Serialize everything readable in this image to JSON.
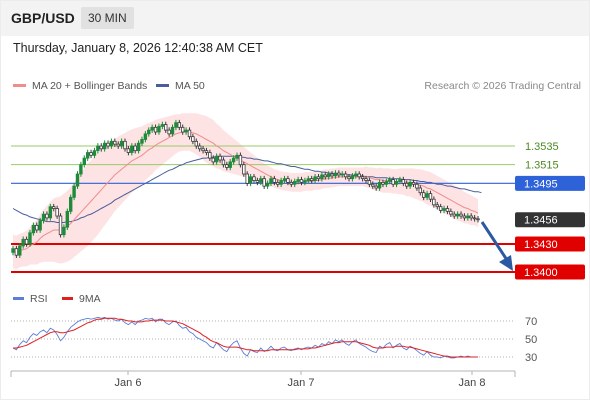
{
  "header": {
    "pair": "GBP/USD",
    "timeframe": "30 MIN"
  },
  "datetime": "Thursday, January 8, 2026 12:40:38 AM CET",
  "legend": {
    "ma20": "MA 20 + Bollinger Bands",
    "ma50": "MA 50",
    "credit": "Research © 2026 Trading Central"
  },
  "rsi_legend": {
    "rsi": "RSI",
    "ma9": "9MA"
  },
  "colors": {
    "candle_up": "#1e8a3a",
    "candle_down": "#3a3a3a",
    "bollinger_fill": "#fde3e3",
    "ma20": "#f08c8c",
    "ma50": "#4a5d9c",
    "resistance": "#9acb6a",
    "pivot": "#2d62d8",
    "support": "#e00000",
    "current": "#333333",
    "arrow": "#2b5aa3",
    "rsi": "#5b7fd8",
    "rsi_ma": "#e02020"
  },
  "chart_data": {
    "type": "candlestick",
    "x_labels": [
      "Jan 6",
      "Jan 7",
      "Jan 8"
    ],
    "price_levels": [
      {
        "name": "resistance-2",
        "value": 1.3535,
        "label": "1.3535"
      },
      {
        "name": "resistance-1",
        "value": 1.3515,
        "label": "1.3515"
      },
      {
        "name": "pivot",
        "value": 1.3495,
        "label": "1.3495"
      },
      {
        "name": "current",
        "value": 1.3456,
        "label": "1.3456"
      },
      {
        "name": "support-1",
        "value": 1.343,
        "label": "1.3430"
      },
      {
        "name": "support-2",
        "value": 1.34,
        "label": "1.3400"
      }
    ],
    "close": [
      1.3425,
      1.3418,
      1.3428,
      1.3435,
      1.343,
      1.3442,
      1.345,
      1.3445,
      1.3455,
      1.3462,
      1.3458,
      1.347,
      1.3468,
      1.346,
      1.344,
      1.3448,
      1.3465,
      1.348,
      1.3492,
      1.3505,
      1.3515,
      1.3522,
      1.3528,
      1.3525,
      1.353,
      1.3535,
      1.3532,
      1.3538,
      1.3535,
      1.354,
      1.3537,
      1.3535,
      1.354,
      1.3532,
      1.3528,
      1.3535,
      1.353,
      1.3538,
      1.3542,
      1.3548,
      1.3552,
      1.3555,
      1.355,
      1.3556,
      1.3558,
      1.3552,
      1.3548,
      1.3555,
      1.356,
      1.3555,
      1.355,
      1.3552,
      1.3545,
      1.354,
      1.3535,
      1.3532,
      1.353,
      1.3528,
      1.3522,
      1.3518,
      1.3524,
      1.352,
      1.3515,
      1.3512,
      1.3518,
      1.3522,
      1.3525,
      1.3515,
      1.3505,
      1.3495,
      1.3502,
      1.3498,
      1.3496,
      1.35,
      1.3492,
      1.3495,
      1.35,
      1.3496,
      1.3494,
      1.3498,
      1.35,
      1.3496,
      1.3494,
      1.3497,
      1.3499,
      1.3496,
      1.3498,
      1.35,
      1.3498,
      1.3502,
      1.35,
      1.3504,
      1.3502,
      1.3505,
      1.3503,
      1.3506,
      1.3504,
      1.3505,
      1.3502,
      1.35,
      1.3503,
      1.3505,
      1.3502,
      1.35,
      1.3498,
      1.3494,
      1.3492,
      1.349,
      1.3496,
      1.3494,
      1.3497,
      1.3499,
      1.3494,
      1.3497,
      1.3499,
      1.3495,
      1.3492,
      1.3496,
      1.3494,
      1.349,
      1.3485,
      1.348,
      1.3484,
      1.3478,
      1.3472,
      1.347,
      1.3466,
      1.3468,
      1.3465,
      1.3462,
      1.346,
      1.3462,
      1.346,
      1.3458,
      1.346,
      1.3458,
      1.3457,
      1.3456
    ],
    "ma20": [
      1.3422,
      1.3421,
      1.3423,
      1.3424,
      1.3425,
      1.3428,
      1.343,
      1.3432,
      1.3436,
      1.3439,
      1.3441,
      1.3443,
      1.3445,
      1.3445,
      1.3445,
      1.3447,
      1.3449,
      1.3452,
      1.3456,
      1.346,
      1.3464,
      1.3468,
      1.3472,
      1.3476,
      1.348,
      1.3484,
      1.3488,
      1.3492,
      1.3496,
      1.35,
      1.3504,
      1.3507,
      1.351,
      1.3513,
      1.3516,
      1.3519,
      1.3521,
      1.3523,
      1.3525,
      1.3528,
      1.3531,
      1.3533,
      1.3536,
      1.3538,
      1.354,
      1.3542,
      1.3544,
      1.3546,
      1.3548,
      1.3549,
      1.355,
      1.355,
      1.355,
      1.3549,
      1.3548,
      1.3546,
      1.3544,
      1.3542,
      1.354,
      1.3538,
      1.3535,
      1.3533,
      1.353,
      1.3528,
      1.3526,
      1.3524,
      1.3522,
      1.352,
      1.3518,
      1.3516,
      1.3514,
      1.3512,
      1.351,
      1.3508,
      1.3506,
      1.3504,
      1.3502,
      1.35,
      1.3499,
      1.3498,
      1.3497,
      1.3497,
      1.3496,
      1.3496,
      1.3496,
      1.3496,
      1.3497,
      1.3497,
      1.3497,
      1.3498,
      1.3498,
      1.3499,
      1.35,
      1.35,
      1.3501,
      1.3501,
      1.3502,
      1.3502,
      1.3502,
      1.3502,
      1.3502,
      1.3502,
      1.3502,
      1.3502,
      1.3502,
      1.3501,
      1.35,
      1.3499,
      1.3499,
      1.3498,
      1.3498,
      1.3498,
      1.3497,
      1.3497,
      1.3497,
      1.3497,
      1.3496,
      1.3496,
      1.3495,
      1.3494,
      1.3493,
      1.3492,
      1.349,
      1.3489,
      1.3487,
      1.3485,
      1.3483,
      1.3481,
      1.3479,
      1.3477,
      1.3475,
      1.3473,
      1.3471,
      1.3469,
      1.3468,
      1.3466,
      1.3465,
      1.3463
    ],
    "ma50": [
      1.3468,
      1.3466,
      1.3464,
      1.3462,
      1.3461,
      1.3459,
      1.3458,
      1.3457,
      1.3456,
      1.3455,
      1.3454,
      1.3454,
      1.3454,
      1.3453,
      1.3453,
      1.3453,
      1.3454,
      1.3454,
      1.3455,
      1.3456,
      1.3458,
      1.3459,
      1.3461,
      1.3462,
      1.3464,
      1.3466,
      1.3468,
      1.347,
      1.3472,
      1.3474,
      1.3477,
      1.3479,
      1.3481,
      1.3483,
      1.3485,
      1.3487,
      1.3489,
      1.3491,
      1.3493,
      1.3495,
      1.3497,
      1.3499,
      1.3501,
      1.3503,
      1.3505,
      1.3507,
      1.3509,
      1.351,
      1.3512,
      1.3514,
      1.3515,
      1.3517,
      1.3518,
      1.3519,
      1.352,
      1.3521,
      1.3522,
      1.3522,
      1.3523,
      1.3523,
      1.3524,
      1.3524,
      1.3524,
      1.3524,
      1.3524,
      1.3524,
      1.3524,
      1.3523,
      1.3523,
      1.3522,
      1.3522,
      1.3521,
      1.3521,
      1.352,
      1.3519,
      1.3519,
      1.3518,
      1.3517,
      1.3516,
      1.3516,
      1.3515,
      1.3514,
      1.3513,
      1.3513,
      1.3512,
      1.3511,
      1.351,
      1.351,
      1.3509,
      1.3508,
      1.3508,
      1.3507,
      1.3507,
      1.3506,
      1.3506,
      1.3505,
      1.3505,
      1.3505,
      1.3504,
      1.3504,
      1.3504,
      1.3503,
      1.3503,
      1.3503,
      1.3502,
      1.3502,
      1.3502,
      1.3501,
      1.3501,
      1.3501,
      1.3501,
      1.35,
      1.35,
      1.35,
      1.35,
      1.3499,
      1.3499,
      1.3499,
      1.3498,
      1.3498,
      1.3497,
      1.3497,
      1.3496,
      1.3496,
      1.3495,
      1.3494,
      1.3494,
      1.3493,
      1.3492,
      1.3492,
      1.3491,
      1.349,
      1.3489,
      1.3489,
      1.3488,
      1.3487,
      1.3486,
      1.3486,
      1.3485
    ],
    "bollinger_width": [
      0.0018,
      0.0018,
      0.0018,
      0.0018,
      0.0019,
      0.002,
      0.0022,
      0.0024,
      0.0026,
      0.0028,
      0.003,
      0.0032,
      0.0034,
      0.0035,
      0.0036,
      0.0037,
      0.0038,
      0.0039,
      0.004,
      0.0041,
      0.0042,
      0.0043,
      0.0044,
      0.0044,
      0.0044,
      0.0044,
      0.0043,
      0.0042,
      0.0041,
      0.004,
      0.0039,
      0.0038,
      0.0037,
      0.0036,
      0.0035,
      0.0034,
      0.0033,
      0.0032,
      0.0031,
      0.003,
      0.0029,
      0.0028,
      0.0027,
      0.0026,
      0.0025,
      0.0024,
      0.0023,
      0.0022,
      0.0021,
      0.002,
      0.002,
      0.002,
      0.002,
      0.0021,
      0.0022,
      0.0023,
      0.0024,
      0.0025,
      0.0025,
      0.0025,
      0.0024,
      0.0023,
      0.0022,
      0.0021,
      0.002,
      0.0019,
      0.0018,
      0.0017,
      0.0016,
      0.0015,
      0.0014,
      0.0013,
      0.0012,
      0.0011,
      0.001,
      0.001,
      0.001,
      0.001,
      0.001,
      0.001,
      0.001,
      0.001,
      0.001,
      0.001,
      0.001,
      0.001,
      0.001,
      0.001,
      0.001,
      0.001,
      0.001,
      0.001,
      0.001,
      0.001,
      0.001,
      0.001,
      0.001,
      0.001,
      0.001,
      0.001,
      0.001,
      0.001,
      0.001,
      0.001,
      0.0011,
      0.0011,
      0.0012,
      0.0012,
      0.0013,
      0.0013,
      0.0013,
      0.0013,
      0.0013,
      0.0013,
      0.0014,
      0.0014,
      0.0015,
      0.0015,
      0.0016,
      0.0016,
      0.0017,
      0.0017,
      0.0018,
      0.0018,
      0.0018,
      0.0018,
      0.0018,
      0.0018,
      0.0018,
      0.0018,
      0.0018,
      0.0018,
      0.0017,
      0.0017,
      0.0016,
      0.0016,
      0.0015,
      0.0015
    ],
    "rsi": {
      "levels": [
        70,
        50,
        30
      ],
      "ylim": [
        20,
        80
      ],
      "rsi": [
        40,
        38,
        44,
        48,
        46,
        52,
        56,
        54,
        58,
        60,
        57,
        62,
        60,
        55,
        48,
        52,
        58,
        63,
        66,
        69,
        71,
        72,
        73,
        72,
        73,
        74,
        73,
        74,
        72,
        73,
        71,
        70,
        72,
        68,
        66,
        69,
        66,
        70,
        71,
        73,
        72,
        73,
        69,
        72,
        72,
        68,
        66,
        69,
        70,
        65,
        62,
        63,
        58,
        56,
        52,
        50,
        48,
        46,
        42,
        40,
        46,
        42,
        38,
        36,
        42,
        46,
        48,
        40,
        34,
        31,
        38,
        36,
        35,
        40,
        36,
        38,
        42,
        38,
        37,
        40,
        41,
        38,
        37,
        39,
        40,
        38,
        40,
        41,
        40,
        43,
        41,
        45,
        43,
        47,
        45,
        49,
        47,
        49,
        45,
        43,
        47,
        49,
        45,
        43,
        41,
        38,
        36,
        35,
        42,
        40,
        44,
        46,
        40,
        43,
        45,
        40,
        38,
        42,
        40,
        37,
        34,
        32,
        36,
        32,
        30,
        30,
        29,
        31,
        30,
        29,
        29,
        30,
        31,
        30,
        31,
        30,
        30,
        30
      ],
      "ma9": [
        40,
        40,
        41,
        42,
        43,
        45,
        47,
        49,
        51,
        53,
        55,
        57,
        58,
        58,
        57,
        57,
        58,
        59,
        60,
        62,
        64,
        66,
        68,
        69,
        71,
        72,
        72,
        73,
        73,
        73,
        73,
        72,
        72,
        71,
        70,
        70,
        69,
        69,
        69,
        70,
        70,
        71,
        71,
        71,
        71,
        70,
        70,
        70,
        69,
        68,
        67,
        65,
        63,
        61,
        59,
        57,
        54,
        52,
        49,
        47,
        46,
        44,
        42,
        41,
        41,
        41,
        41,
        40,
        39,
        38,
        38,
        37,
        37,
        37,
        37,
        37,
        38,
        38,
        38,
        38,
        38,
        38,
        38,
        38,
        39,
        39,
        39,
        39,
        40,
        40,
        41,
        42,
        43,
        44,
        45,
        46,
        46,
        47,
        47,
        47,
        47,
        47,
        46,
        45,
        44,
        43,
        41,
        40,
        40,
        40,
        41,
        41,
        41,
        42,
        42,
        42,
        41,
        41,
        40,
        39,
        38,
        37,
        36,
        35,
        34,
        33,
        32,
        31,
        31,
        30,
        30,
        30,
        30,
        30,
        30,
        30,
        30,
        30
      ]
    }
  }
}
